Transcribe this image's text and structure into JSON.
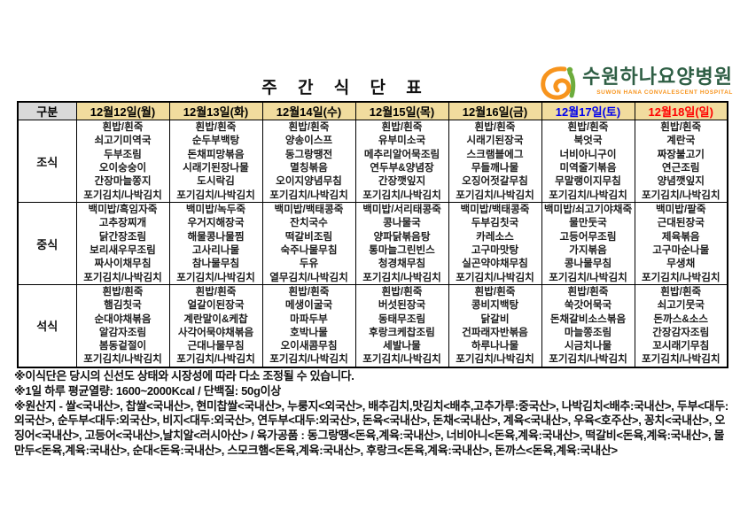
{
  "page": {
    "title": "주 간 식 단 표"
  },
  "logo": {
    "hospital_name": "수원하나요양병원",
    "subtitle": "SUWON HANA CONVALESCENT HOSPITAL"
  },
  "colors": {
    "header_bg": "#F1DC9E",
    "corner_bg": "#D9D9D9",
    "weekday_text": "#000000",
    "saturday_text": "#0000EE",
    "sunday_text": "#FF0000",
    "logo_green": "#2E5E44",
    "logo_orange": "#F7941D"
  },
  "table": {
    "corner_label": "구분",
    "columns": [
      {
        "label": "12월12일(월)",
        "text_color": "#000000"
      },
      {
        "label": "12월13일(화)",
        "text_color": "#000000"
      },
      {
        "label": "12월14일(수)",
        "text_color": "#000000"
      },
      {
        "label": "12월15일(목)",
        "text_color": "#000000"
      },
      {
        "label": "12월16일(금)",
        "text_color": "#000000"
      },
      {
        "label": "12월17일(토)",
        "text_color": "#0000EE"
      },
      {
        "label": "12월18일(일)",
        "text_color": "#FF0000"
      }
    ],
    "rows": [
      {
        "label": "조식",
        "cells": [
          [
            "흰밥/흰죽",
            "쇠고기미역국",
            "두부조림",
            "오이숭숭이",
            "간장마늘쫑지",
            "포기김치/나박김치"
          ],
          [
            "흰밥/흰죽",
            "순두부백탕",
            "돈채피망볶음",
            "시래기된장나물",
            "도시락김",
            "포기김치/나박김치"
          ],
          [
            "흰밥/흰죽",
            "양송이스프",
            "동그랑땡전",
            "멸칭볶음",
            "오이지양념무침",
            "포기김치/나박김치"
          ],
          [
            "흰밥/흰죽",
            "유부미소국",
            "메추리알어묵조림",
            "연두부&양념장",
            "간장깻잎지",
            "포기김치/나박김치"
          ],
          [
            "흰밥/흰죽",
            "시래기된장국",
            "스크램블에그",
            "무들깨나물",
            "오징어젓갈무침",
            "포기김치/나박김치"
          ],
          [
            "흰밥/흰죽",
            "북엇국",
            "너비아니구이",
            "미역줄기볶음",
            "무말랭이지무침",
            "포기김치/나박김치"
          ],
          [
            "흰밥/흰죽",
            "계란국",
            "짜장불고기",
            "연근조림",
            "양념깻잎지",
            "포기김치/나박김치"
          ]
        ]
      },
      {
        "label": "중식",
        "cells": [
          [
            "백미밥/흑임자죽",
            "고추장찌개",
            "닭간장조림",
            "보리새우무조림",
            "짜사이채무침",
            "포기김치/나박김치"
          ],
          [
            "백미밥/녹두죽",
            "우거지해장국",
            "해물콩나물찜",
            "고사리나물",
            "참나물무침",
            "포기김치/나박김치"
          ],
          [
            "백미밥/백태콩죽",
            "잔치국수",
            "떡갈비조림",
            "숙주나물무침",
            "두유",
            "열무김치/나박김치"
          ],
          [
            "백미밥/서리태콩죽",
            "콩나물국",
            "양파닭볶음탕",
            "통마늘그린빈스",
            "청경채무침",
            "포기김치/나박김치"
          ],
          [
            "백미밥/백태콩죽",
            "두부김칫국",
            "카레소스",
            "고구마맛탕",
            "실곤약야채무침",
            "포기김치/나박김치"
          ],
          [
            "백미밥/쇠고기야채죽",
            "물만둣국",
            "고등어무조림",
            "가지볶음",
            "콩나물무침",
            "포기김치/나박김치"
          ],
          [
            "백미밥/팥죽",
            "근대된장국",
            "제육볶음",
            "고구마순나물",
            "무생채",
            "포기김치/나박김치"
          ]
        ]
      },
      {
        "label": "석식",
        "cells": [
          [
            "흰밥/흰죽",
            "햄김칫국",
            "순대야채볶음",
            "알감자조림",
            "봄동겉절이",
            "포기김치/나박김치"
          ],
          [
            "흰밥/흰죽",
            "얼갈이된장국",
            "계란말이&케찹",
            "사각어묵야채볶음",
            "근대나물무침",
            "포기김치/나박김치"
          ],
          [
            "흰밥/흰죽",
            "메생이굴국",
            "마파두부",
            "호박나물",
            "오이새콤무침",
            "포기김치/나박김치"
          ],
          [
            "흰밥/흰죽",
            "버섯된장국",
            "동태무조림",
            "후랑크케찹조림",
            "세발나물",
            "포기김치/나박김치"
          ],
          [
            "흰밥/흰죽",
            "콩비지백탕",
            "닭갈비",
            "건파래자반볶음",
            "하루나나물",
            "포기김치/나박김치"
          ],
          [
            "흰밥/흰죽",
            "쑥갓어묵국",
            "돈채갈비소스볶음",
            "마늘쫑조림",
            "시금치나물",
            "포기김치/나박김치"
          ],
          [
            "흰밥/흰죽",
            "쇠고기뭇국",
            "돈까스&소스",
            "간장감자조림",
            "꼬시래기무침",
            "포기김치/나박김치"
          ]
        ]
      }
    ]
  },
  "notes": [
    "※이식단은 당시의 신선도 상태와 시장성에 따라 다소 조정될 수 있습니다.",
    "※1일 하루 평균열량: 1600~2000Kcal / 단백질: 50g이상",
    "※원산지 - 쌀<국내산>, 찹쌀<국내산>, 현미찹쌀<국내산>, 누룽지<외국산>, 배추김치,맛김치<배추,고추가루:중국산>, 나박김치<배추:국내산>, 두부<대두:외국산>, 순두부<대두:외국산>, 비지<대두:외국산>, 연두부<대두:외국산>, 돈육<국내산>, 돈채<국내산>, 계육<국내산>, 우육<호주산>, 꽁치<국내산>, 오징어<국내산>, 고등어<국내산>,날치알<러시아산> / 육가공품 : 동그랑땡<돈육,계육:국내산>, 너비아니<돈육,계육:국내산>, 떡갈비<돈육,계육:국내산>, 물만두<돈육,계육:국내산>, 순대<돈육:국내산>, 스모크햄<돈육,계육:국내산>, 후랑크<돈육,계육:국내산>, 돈까스<돈육,계육:국내산>"
  ]
}
